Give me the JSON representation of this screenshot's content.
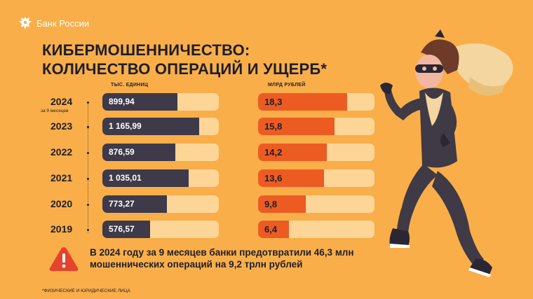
{
  "header": {
    "brand": "Банк России"
  },
  "title": {
    "line1": "КИБЕРМОШЕННИЧЕСТВО:",
    "line2": "КОЛИЧЕСТВО ОПЕРАЦИЙ И УЩЕРБ*"
  },
  "chart_data": {
    "type": "bar",
    "categories": [
      "2024",
      "2023",
      "2022",
      "2021",
      "2020",
      "2019"
    ],
    "category_note": "за 9 месяцев",
    "series": [
      {
        "name": "ТЫС. ЕДИНИЦ",
        "values": [
          899.94,
          1165.99,
          876.59,
          1035.01,
          773.27,
          576.57
        ],
        "labels": [
          "899,94",
          "1 165,99",
          "876,59",
          "1 035,01",
          "773,27",
          "576,57"
        ]
      },
      {
        "name": "МЛРД РУБЛЕЙ",
        "values": [
          18.3,
          15.8,
          14.2,
          13.6,
          9.8,
          6.4
        ],
        "labels": [
          "18,3",
          "15,8",
          "14,2",
          "13,6",
          "9,8",
          "6,4"
        ]
      }
    ],
    "colors": {
      "operations": "#3E3A4A",
      "damage": "#EC5C22",
      "track": "#FDD597",
      "background": "#F9AE49"
    }
  },
  "notice": {
    "icon": "warning-icon",
    "line1": "В 2024 году за 9 месяцев банки предотвратили 46,3 млн",
    "line2": "мошеннических операций на 9,2 трлн рублей"
  },
  "footnote": "*ФИЗИЧЕСКИЕ И ЮРИДИЧЕСКИЕ ЛИЦА"
}
